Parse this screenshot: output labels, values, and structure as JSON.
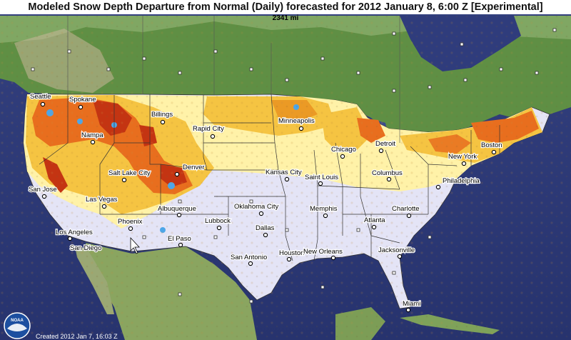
{
  "title": "Modeled Snow Depth Departure from Normal (Daily) forecasted for 2012 January 8, 6:00 Z [Experimental]",
  "scale": "2341 mi",
  "created": "Created 2012 Jan 7, 16:03 Z",
  "logo": "NOAA",
  "cities": [
    {
      "name": "Seattle"
    },
    {
      "name": "Spokane"
    },
    {
      "name": "Billings"
    },
    {
      "name": "Rapid City"
    },
    {
      "name": "Minneapolis"
    },
    {
      "name": "Nampa"
    },
    {
      "name": "Detroit"
    },
    {
      "name": "Chicago"
    },
    {
      "name": "Boston"
    },
    {
      "name": "New York"
    },
    {
      "name": "Salt Lake City"
    },
    {
      "name": "Denver"
    },
    {
      "name": "Kansas City"
    },
    {
      "name": "Saint Louis"
    },
    {
      "name": "Columbus"
    },
    {
      "name": "Philadelphia"
    },
    {
      "name": "San Jose"
    },
    {
      "name": "Las Vegas"
    },
    {
      "name": "Oklahoma City"
    },
    {
      "name": "Memphis"
    },
    {
      "name": "Charlotte"
    },
    {
      "name": "Albuquerque"
    },
    {
      "name": "Los Angeles"
    },
    {
      "name": "Phoenix"
    },
    {
      "name": "Lubbock"
    },
    {
      "name": "Dallas"
    },
    {
      "name": "Atlanta"
    },
    {
      "name": "San Diego"
    },
    {
      "name": "El Paso"
    },
    {
      "name": "Jacksonville"
    },
    {
      "name": "San Antonio"
    },
    {
      "name": "Houston"
    },
    {
      "name": "New Orleans"
    },
    {
      "name": "Miami"
    }
  ],
  "colors": {
    "ocean": "#2e3a7a",
    "land_green": "#6f9a4c",
    "no_snow_fill": "#e4e4f6",
    "snow_light": "#fff2a8",
    "snow_mid": "#f5c442",
    "snow_heavy": "#e86e1e",
    "snow_extreme": "#c43412",
    "snow_deficit_blue": "#4da6e8"
  }
}
